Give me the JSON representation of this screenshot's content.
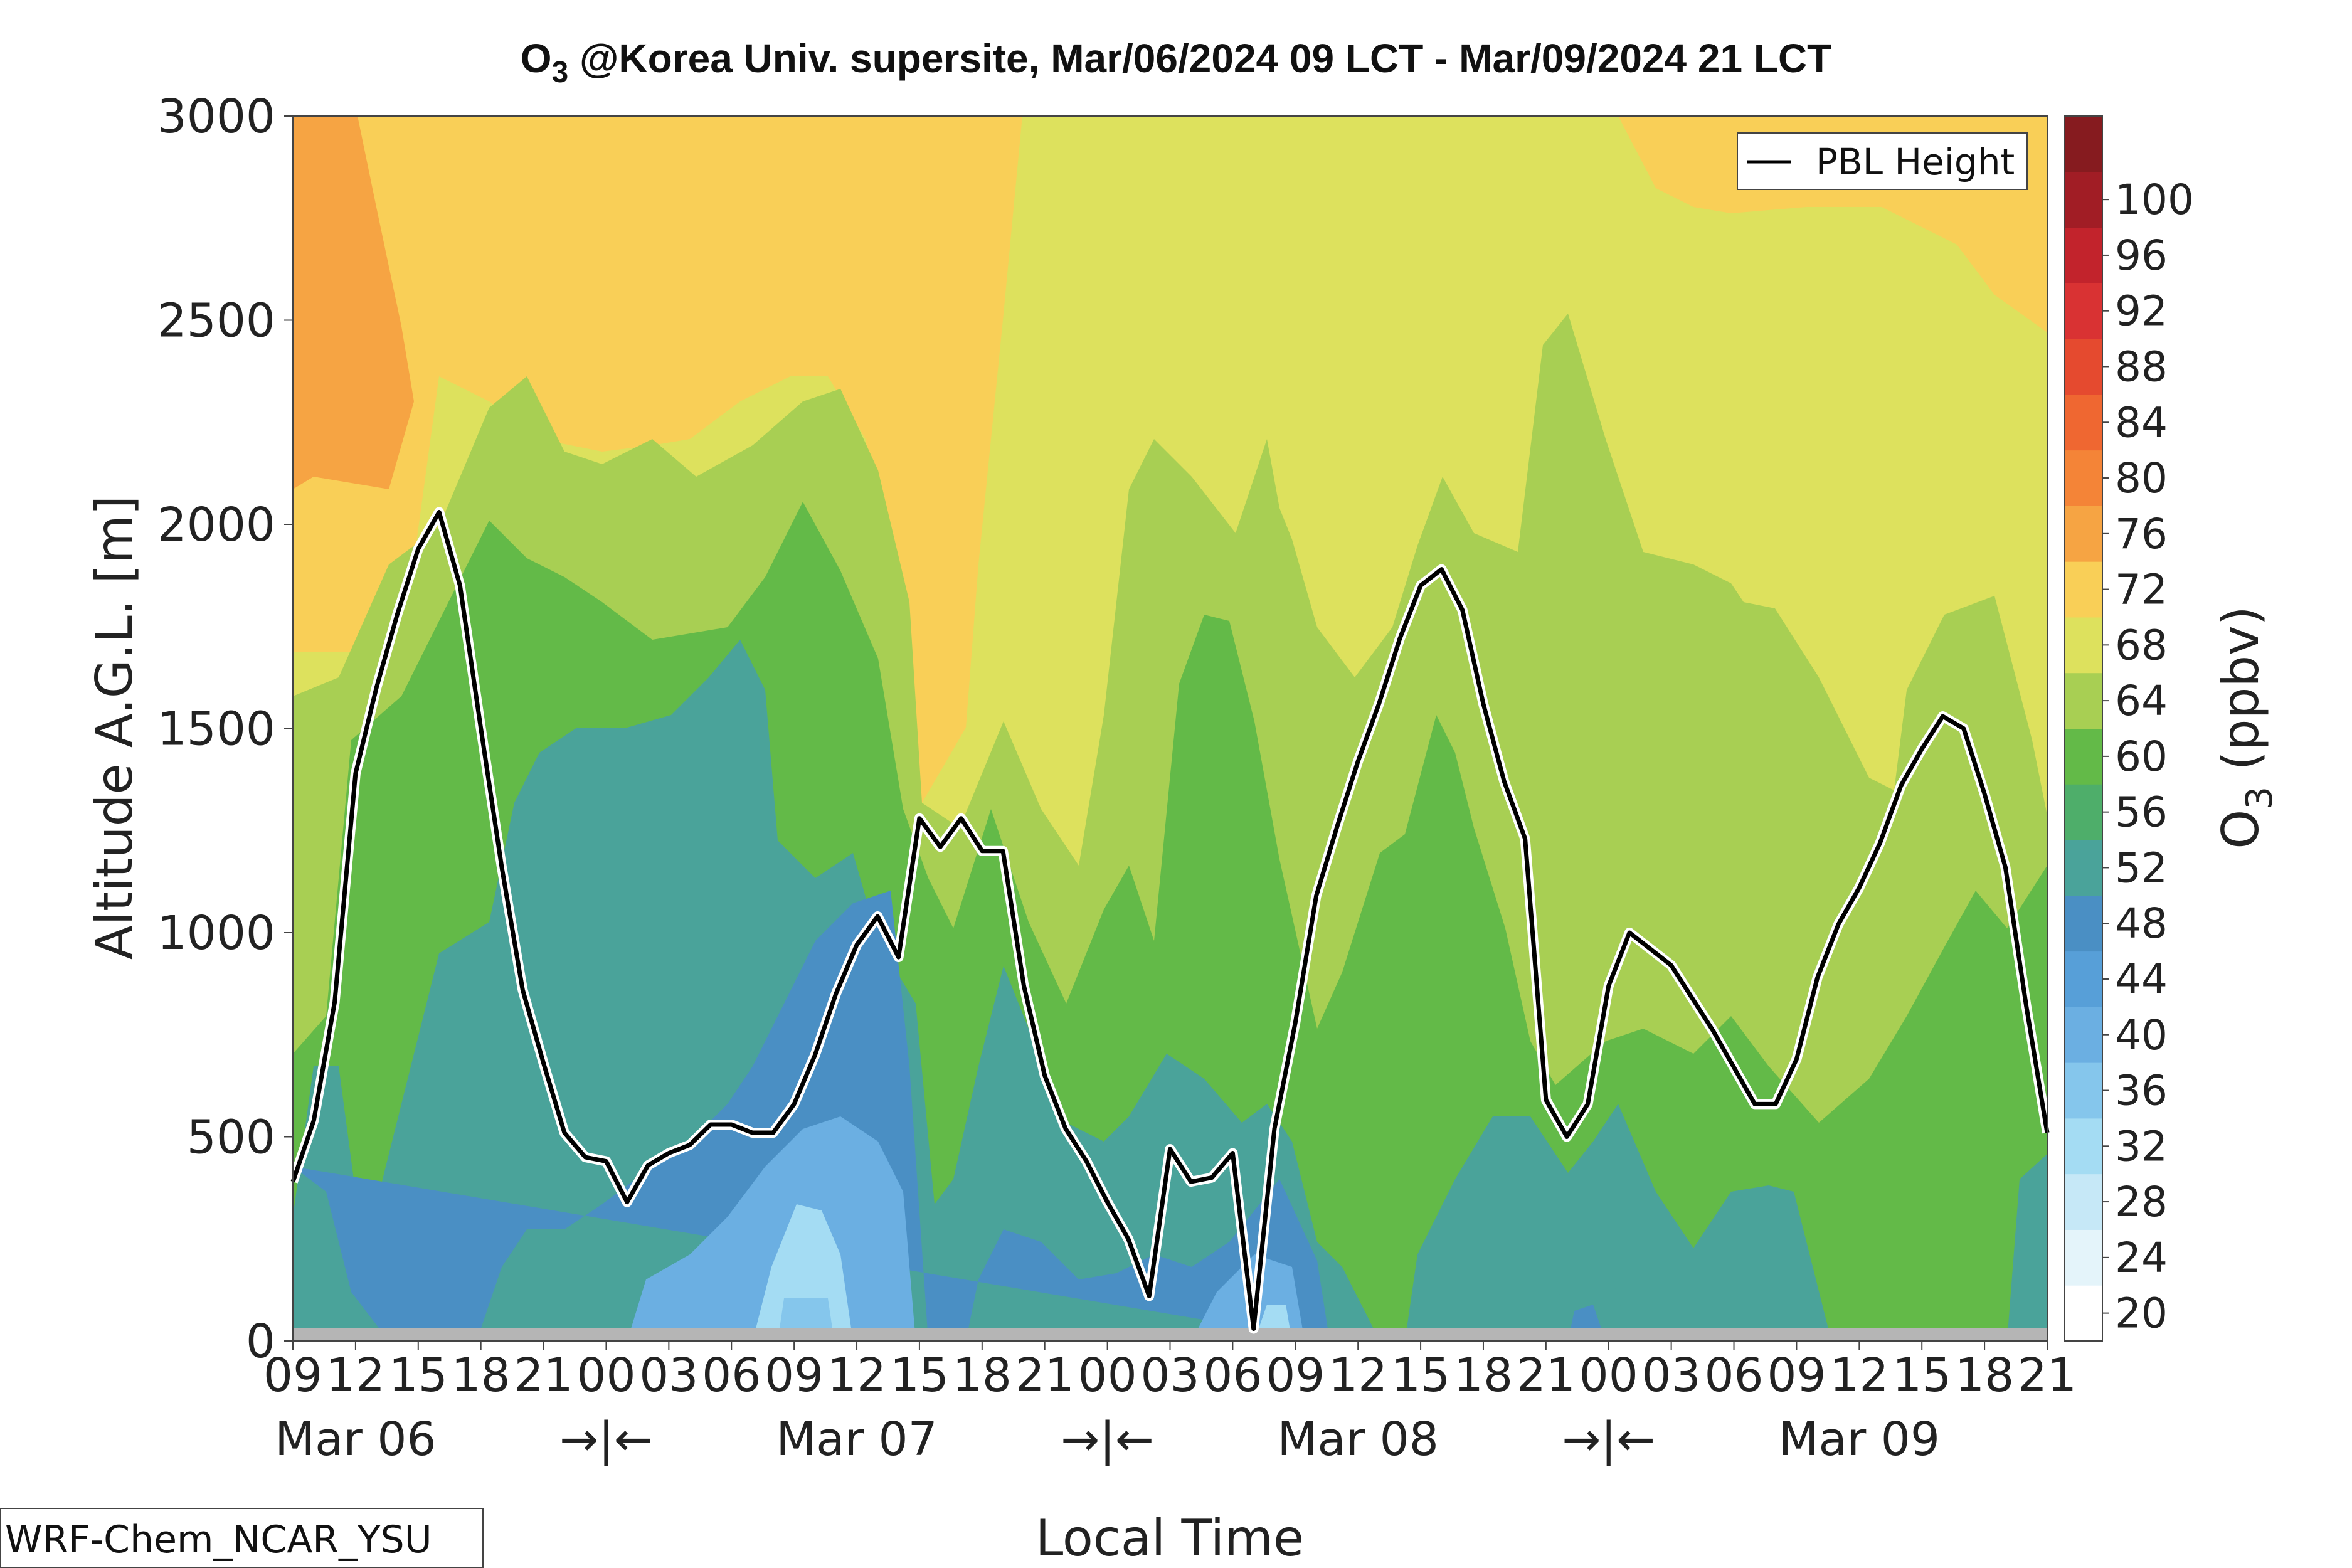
{
  "chart_data": {
    "type": "contour",
    "title_main": "O",
    "title_sub": "3",
    "title_rest": " @Korea Univ. supersite, Mar/06/2024 09 LCT - Mar/09/2024 21 LCT",
    "ylabel": "Altitude A.G.L. [m]",
    "xlabel": "Local Time",
    "ylim": [
      0,
      3000
    ],
    "y_ticks": [
      "0",
      "500",
      "1000",
      "1500",
      "2000",
      "2500",
      "3000"
    ],
    "x_ticks": [
      "09",
      "12",
      "15",
      "18",
      "21",
      "00",
      "03",
      "06",
      "09",
      "12",
      "15",
      "18",
      "21",
      "00",
      "03",
      "06",
      "09",
      "12",
      "15",
      "18",
      "21",
      "00",
      "03",
      "06",
      "09",
      "12",
      "15",
      "18",
      "21"
    ],
    "day_labels": [
      "Mar 06",
      "Mar 07",
      "Mar 08",
      "Mar 09"
    ],
    "day_separator": "→|←",
    "colorbar": {
      "label_main": "O",
      "label_sub": "3",
      "label_rest": " (ppbv)",
      "ticks": [
        "20",
        "24",
        "28",
        "32",
        "36",
        "40",
        "44",
        "48",
        "52",
        "56",
        "60",
        "64",
        "68",
        "72",
        "76",
        "80",
        "84",
        "88",
        "92",
        "96",
        "100"
      ],
      "colors": [
        "#ffffff",
        "#e4f4fa",
        "#c6e8f7",
        "#a4dcf3",
        "#85c6ec",
        "#6bafe2",
        "#579fd8",
        "#4a8fc4",
        "#4aa39a",
        "#4eae6a",
        "#63ba48",
        "#a8cf53",
        "#dde15d",
        "#f9cf57",
        "#f6a443",
        "#f48437",
        "#ef6731",
        "#e54a2f",
        "#d93233",
        "#c2232c",
        "#a11d25",
        "#861b1f"
      ]
    },
    "legend": {
      "label": "PBL Height",
      "position": "top-right"
    },
    "pbl_height": {
      "x_hours": [
        0,
        1,
        2,
        3,
        4,
        5,
        6,
        7,
        8,
        9,
        10,
        11,
        12,
        13,
        14,
        15,
        16,
        17,
        18,
        19,
        20,
        21,
        22,
        23,
        24,
        25,
        26,
        27,
        28,
        29,
        30,
        31,
        32,
        33,
        34,
        35,
        36,
        37,
        38,
        39,
        40,
        41,
        42,
        43,
        44,
        45,
        46,
        47,
        48,
        49,
        50,
        51,
        52,
        53,
        54,
        55,
        56,
        57,
        58,
        59,
        60,
        61,
        62,
        63,
        64,
        65,
        66,
        67,
        68,
        69,
        70,
        71,
        72,
        73,
        74,
        75,
        76,
        77,
        78,
        79,
        80,
        81,
        82,
        83,
        84
      ],
      "values": [
        390,
        540,
        830,
        1390,
        1600,
        1780,
        1940,
        2030,
        1850,
        1500,
        1160,
        860,
        680,
        510,
        450,
        440,
        340,
        430,
        460,
        480,
        530,
        530,
        510,
        510,
        580,
        700,
        850,
        970,
        1040,
        940,
        1280,
        1210,
        1280,
        1200,
        1200,
        870,
        650,
        520,
        440,
        340,
        250,
        110,
        470,
        390,
        400,
        460,
        30,
        520,
        780,
        1090,
        1260,
        1420,
        1560,
        1720,
        1850,
        1890,
        1790,
        1560,
        1370,
        1230,
        590,
        500,
        580,
        870,
        1000,
        960,
        920,
        840,
        760,
        670,
        580,
        580,
        690,
        890,
        1020,
        1110,
        1220,
        1360,
        1450,
        1530,
        1500,
        1340,
        1160,
        820,
        510
      ]
    }
  },
  "source_label": "WRF-Chem_NCAR_YSU"
}
